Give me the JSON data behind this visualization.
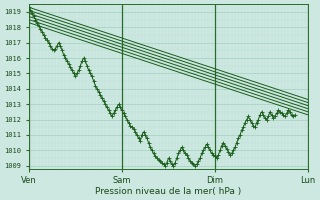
{
  "xlabel": "Pression niveau de la mer( hPa )",
  "bg_color": "#cce8e0",
  "grid_color_major": "#99ccbb",
  "grid_color_minor": "#bbddd5",
  "line_color": "#1a5c1a",
  "ylim": [
    1008.8,
    1019.5
  ],
  "xlim": [
    0,
    168
  ],
  "xtick_labels": [
    "Ven",
    "Sam",
    "Dim",
    "Lun"
  ],
  "xtick_positions": [
    0,
    56,
    112,
    168
  ],
  "ytick_values": [
    1009,
    1010,
    1011,
    1012,
    1013,
    1014,
    1015,
    1016,
    1017,
    1018,
    1019
  ],
  "forecast_lines": [
    {
      "x0": 0,
      "y0": 1019.3,
      "x1": 168,
      "y1": 1013.3
    },
    {
      "x0": 0,
      "y0": 1019.1,
      "x1": 168,
      "y1": 1013.1
    },
    {
      "x0": 0,
      "y0": 1018.9,
      "x1": 168,
      "y1": 1012.9
    },
    {
      "x0": 0,
      "y0": 1018.7,
      "x1": 168,
      "y1": 1012.7
    },
    {
      "x0": 0,
      "y0": 1018.5,
      "x1": 168,
      "y1": 1012.5
    },
    {
      "x0": 0,
      "y0": 1018.3,
      "x1": 168,
      "y1": 1012.3
    }
  ],
  "obs_x": [
    0,
    1,
    2,
    3,
    4,
    5,
    6,
    7,
    8,
    9,
    10,
    11,
    12,
    13,
    14,
    15,
    16,
    17,
    18,
    19,
    20,
    21,
    22,
    23,
    24,
    25,
    26,
    27,
    28,
    29,
    30,
    31,
    32,
    33,
    34,
    35,
    36,
    37,
    38,
    39,
    40,
    41,
    42,
    43,
    44,
    45,
    46,
    47,
    48,
    49,
    50,
    51,
    52,
    53,
    54,
    55,
    56,
    57,
    58,
    59,
    60,
    61,
    62,
    63,
    64,
    65,
    66,
    67,
    68,
    69,
    70,
    71,
    72,
    73,
    74,
    75,
    76,
    77,
    78,
    79,
    80,
    81,
    82,
    83,
    84,
    85,
    86,
    87,
    88,
    89,
    90,
    91,
    92,
    93,
    94,
    95,
    96,
    97,
    98,
    99,
    100,
    101,
    102,
    103,
    104,
    105,
    106,
    107,
    108,
    109,
    110,
    111,
    112,
    113,
    114,
    115,
    116,
    117,
    118,
    119,
    120,
    121,
    122,
    123,
    124,
    125,
    126,
    127,
    128,
    129,
    130,
    131,
    132,
    133,
    134,
    135,
    136,
    137,
    138,
    139,
    140,
    141,
    142,
    143,
    144,
    145,
    146,
    147,
    148,
    149,
    150,
    151,
    152,
    153,
    154,
    155,
    156,
    157,
    158,
    159,
    160
  ],
  "obs_y": [
    1019.3,
    1019.1,
    1018.9,
    1018.7,
    1018.5,
    1018.3,
    1018.1,
    1017.9,
    1017.7,
    1017.5,
    1017.3,
    1017.2,
    1017.0,
    1016.8,
    1016.6,
    1016.5,
    1016.6,
    1016.8,
    1017.0,
    1016.8,
    1016.5,
    1016.2,
    1016.0,
    1015.8,
    1015.6,
    1015.4,
    1015.2,
    1015.0,
    1014.8,
    1015.0,
    1015.2,
    1015.5,
    1015.8,
    1016.0,
    1015.8,
    1015.5,
    1015.2,
    1015.0,
    1014.8,
    1014.5,
    1014.2,
    1014.0,
    1013.8,
    1013.6,
    1013.4,
    1013.2,
    1013.0,
    1012.8,
    1012.6,
    1012.4,
    1012.2,
    1012.4,
    1012.6,
    1012.8,
    1013.0,
    1012.8,
    1012.6,
    1012.4,
    1012.2,
    1012.0,
    1011.8,
    1011.6,
    1011.5,
    1011.4,
    1011.2,
    1011.0,
    1010.8,
    1010.6,
    1011.0,
    1011.2,
    1011.0,
    1010.8,
    1010.5,
    1010.2,
    1010.0,
    1009.8,
    1009.6,
    1009.5,
    1009.4,
    1009.3,
    1009.2,
    1009.1,
    1009.0,
    1009.2,
    1009.5,
    1009.3,
    1009.1,
    1009.0,
    1009.2,
    1009.5,
    1009.8,
    1010.0,
    1010.2,
    1010.0,
    1009.8,
    1009.7,
    1009.5,
    1009.3,
    1009.2,
    1009.1,
    1009.0,
    1009.1,
    1009.3,
    1009.5,
    1009.8,
    1010.0,
    1010.2,
    1010.4,
    1010.2,
    1010.0,
    1009.8,
    1009.7,
    1009.6,
    1009.5,
    1009.7,
    1010.0,
    1010.3,
    1010.5,
    1010.3,
    1010.1,
    1009.9,
    1009.7,
    1009.8,
    1010.0,
    1010.2,
    1010.5,
    1010.8,
    1011.0,
    1011.3,
    1011.5,
    1011.8,
    1012.0,
    1012.2,
    1012.0,
    1011.8,
    1011.6,
    1011.5,
    1011.8,
    1012.0,
    1012.3,
    1012.5,
    1012.3,
    1012.1,
    1012.0,
    1012.2,
    1012.5,
    1012.3,
    1012.1,
    1012.2,
    1012.4,
    1012.6,
    1012.5,
    1012.4,
    1012.3,
    1012.2,
    1012.4,
    1012.6,
    1012.5,
    1012.3,
    1012.2,
    1012.3
  ]
}
